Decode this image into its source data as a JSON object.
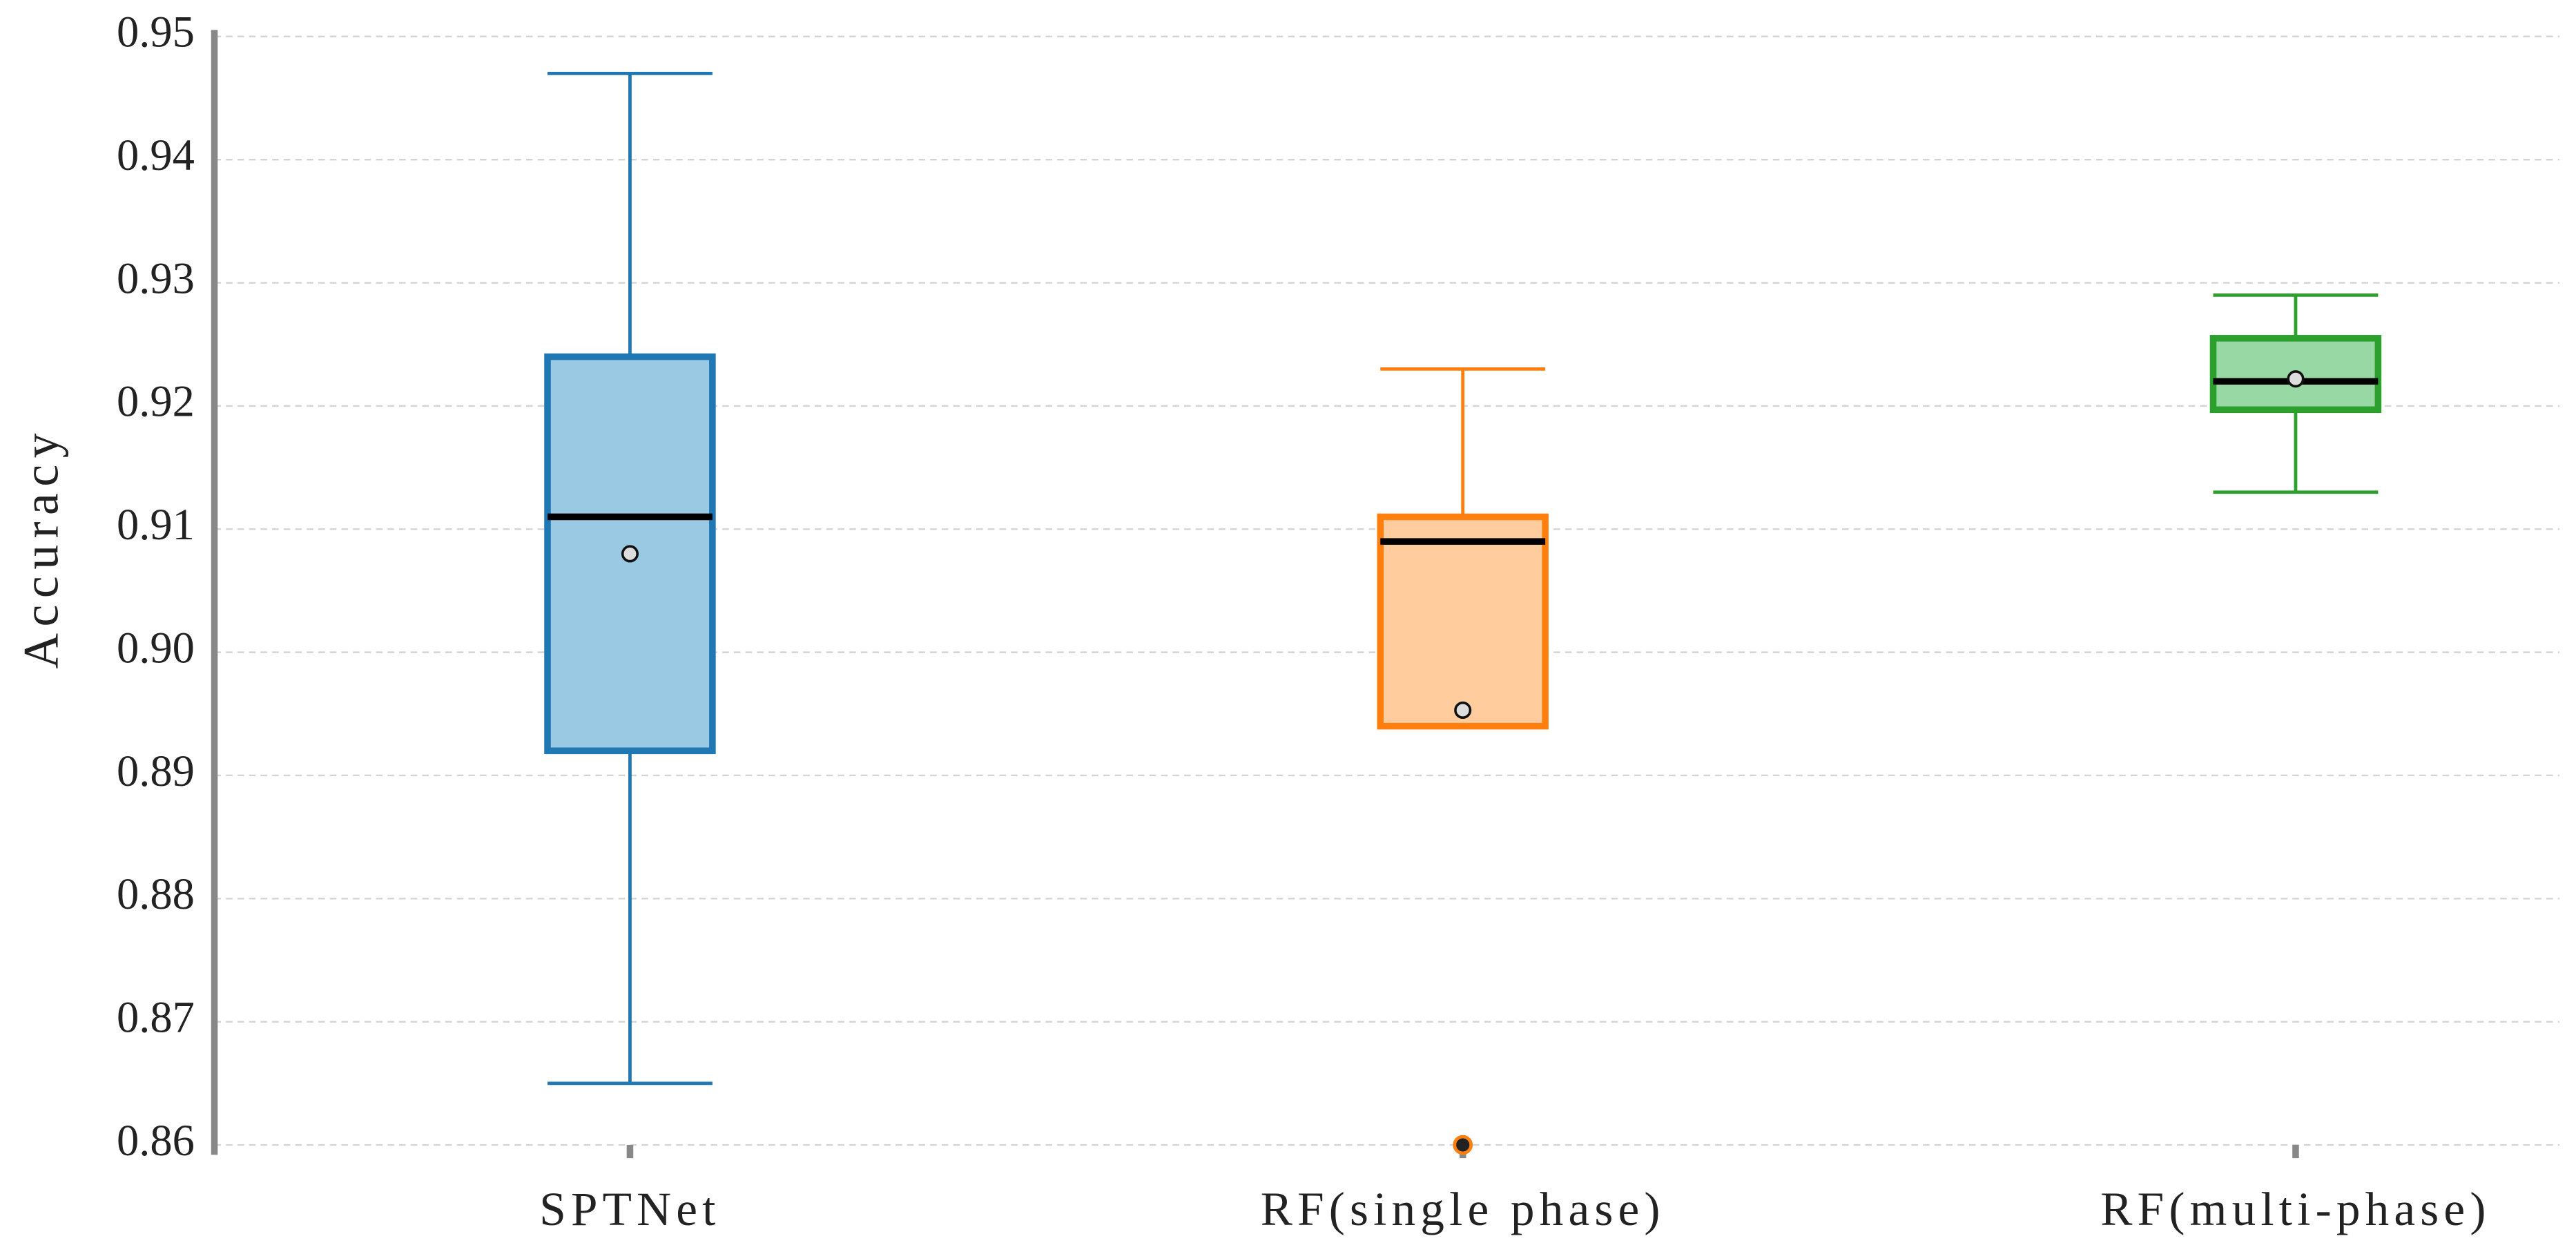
{
  "chart_data": {
    "type": "box",
    "y_label": "Accuracy",
    "categories": [
      "SPTNet",
      "RF(single phase)",
      "RF(multi-phase)"
    ],
    "boxes": [
      {
        "whislo": 0.865,
        "q1": 0.892,
        "med": 0.911,
        "q3": 0.924,
        "whishi": 0.947,
        "mean": 0.908,
        "fliers": [],
        "color": "#1f77b4",
        "fill": "#99c9e3"
      },
      {
        "whislo": 0.894,
        "q1": 0.894,
        "med": 0.909,
        "q3": 0.911,
        "whishi": 0.923,
        "mean": 0.8953,
        "fliers": [
          0.86
        ],
        "color": "#ff7f0e",
        "fill": "#ffcc9e"
      },
      {
        "whislo": 0.913,
        "q1": 0.9197,
        "med": 0.922,
        "q3": 0.9255,
        "whishi": 0.929,
        "mean": 0.9222,
        "fliers": [],
        "color": "#2ca02c",
        "fill": "#98d8a5"
      }
    ],
    "ylim": [
      0.86,
      0.95
    ],
    "yticks": [
      0.86,
      0.87,
      0.88,
      0.89,
      {
        "value": 0.9,
        "label": "0.90"
      },
      0.91,
      0.92,
      0.93,
      0.94,
      0.95
    ],
    "grid": true
  }
}
